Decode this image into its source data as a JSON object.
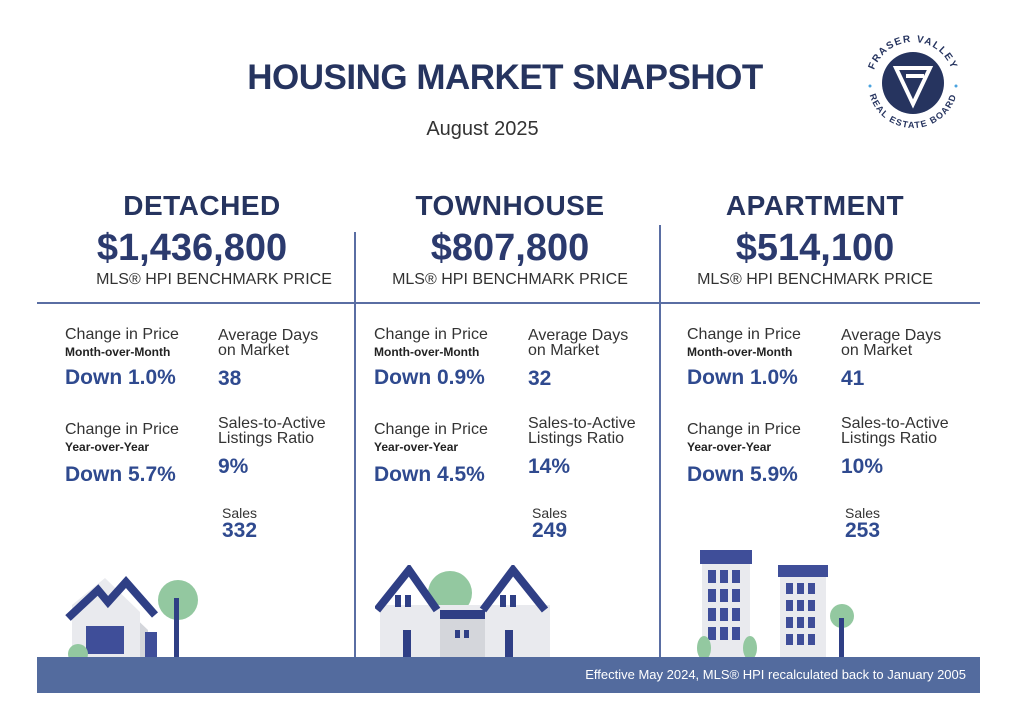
{
  "header": {
    "title": "HOUSING MARKET SNAPSHOT",
    "subtitle": "August 2025",
    "logo_text": "FRASER VALLEY REAL ESTATE BOARD"
  },
  "labels": {
    "benchmark": "MLS® HPI BENCHMARK PRICE",
    "change": "Change in Price",
    "mom": "Month-over-Month",
    "yoy": "Year-over-Year",
    "dom1": "Average Days",
    "dom2": "on Market",
    "sal1": "Sales-to-Active",
    "sal2": "Listings Ratio",
    "sales": "Sales"
  },
  "columns": [
    {
      "title": "DETACHED",
      "price": "$1,436,800",
      "mom": "Down 1.0%",
      "yoy": "Down 5.7%",
      "dom": "38",
      "ratio": "9%",
      "sales": "332",
      "icon": "detached-house-icon"
    },
    {
      "title": "TOWNHOUSE",
      "price": "$807,800",
      "mom": "Down 0.9%",
      "yoy": "Down 4.5%",
      "dom": "32",
      "ratio": "14%",
      "sales": "249",
      "icon": "townhouse-icon"
    },
    {
      "title": "APARTMENT",
      "price": "$514,100",
      "mom": "Down 1.0%",
      "yoy": "Down 5.9%",
      "dom": "41",
      "ratio": "10%",
      "sales": "253",
      "icon": "apartment-building-icon"
    }
  ],
  "footer": {
    "note": "Effective May 2024, MLS® HPI recalculated back to January 2005"
  },
  "colors": {
    "navy": "#26345f",
    "accent": "#2f4a8f",
    "footer": "#536b9e",
    "green": "#93c8a0"
  }
}
